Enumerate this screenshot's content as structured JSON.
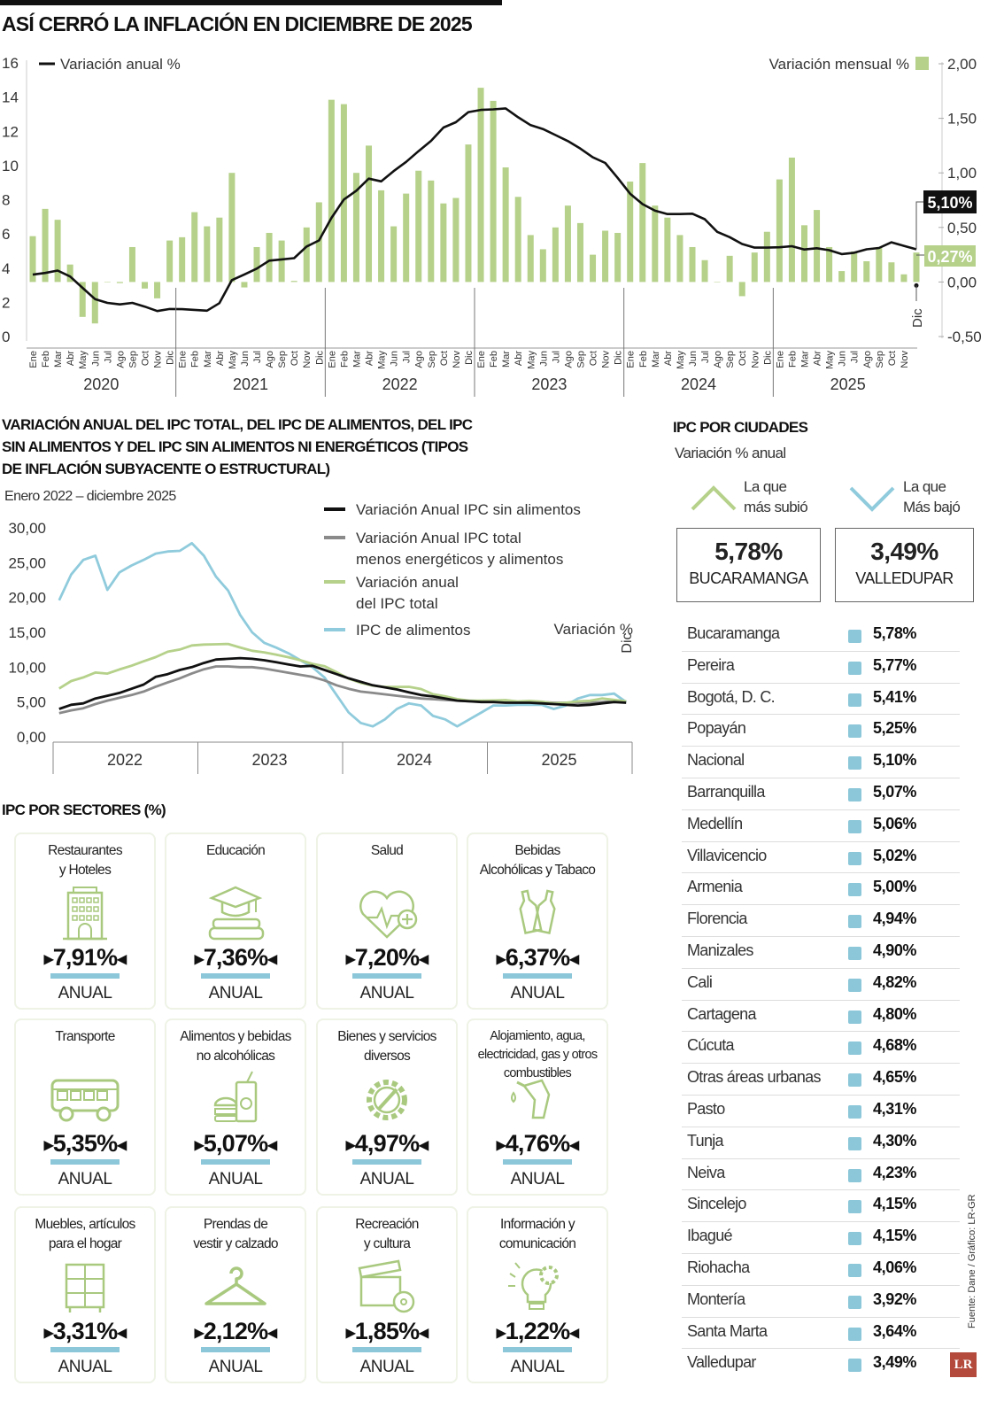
{
  "title": "ASÍ CERRÓ LA INFLACIÓN EN DICIEMBRE DE 2025",
  "chart_data": [
    {
      "type": "bar+line",
      "legend_line": "Variación anual %",
      "legend_bar": "Variación mensual %",
      "left_ticks": [
        "0",
        "2",
        "4",
        "6",
        "8",
        "10",
        "12",
        "14",
        "16"
      ],
      "left_ylim": [
        0,
        16
      ],
      "right_ticks": [
        "-0,50",
        "0,00",
        "0,50",
        "1,00",
        "1,50",
        "2,00"
      ],
      "right_ylim": [
        -0.5,
        2.0
      ],
      "months": [
        "Ene",
        "Feb",
        "Mar",
        "Abr",
        "May",
        "Jun",
        "Jul",
        "Ago",
        "Sep",
        "Oct",
        "Nov",
        "Dic"
      ],
      "years": [
        "2020",
        "2021",
        "2022",
        "2023",
        "2024",
        "2025"
      ],
      "last_month_label": "Dic",
      "series": [
        {
          "name": "Variación mensual %",
          "kind": "bar",
          "color": "#b5d18a",
          "values": [
            0.42,
            0.67,
            0.57,
            0.16,
            -0.32,
            -0.38,
            0.0,
            -0.01,
            0.32,
            -0.06,
            -0.15,
            0.38,
            0.41,
            0.64,
            0.51,
            0.59,
            1.0,
            -0.05,
            0.32,
            0.45,
            0.38,
            0.01,
            0.5,
            0.73,
            1.67,
            1.63,
            1.0,
            1.25,
            0.84,
            0.51,
            0.81,
            1.02,
            0.93,
            0.72,
            0.77,
            1.26,
            1.78,
            1.66,
            1.05,
            0.78,
            0.43,
            0.3,
            0.5,
            0.7,
            0.54,
            0.25,
            0.47,
            0.45,
            0.92,
            1.09,
            0.7,
            0.59,
            0.43,
            0.32,
            0.2,
            0.0,
            0.24,
            -0.13,
            0.27,
            0.46,
            0.94,
            1.14,
            0.52,
            0.66,
            0.32,
            0.1,
            0.28,
            0.19,
            0.32,
            0.18,
            0.07,
            0.27
          ]
        },
        {
          "name": "Variación anual %",
          "kind": "line",
          "color": "#111111",
          "values": [
            3.62,
            3.72,
            3.86,
            3.51,
            2.85,
            2.19,
            1.97,
            1.88,
            1.97,
            1.75,
            1.49,
            1.61,
            1.6,
            1.56,
            1.51,
            1.95,
            3.3,
            3.63,
            3.97,
            4.44,
            4.51,
            4.58,
            5.26,
            5.62,
            6.94,
            8.01,
            8.53,
            9.23,
            9.07,
            9.67,
            10.21,
            10.84,
            11.44,
            12.22,
            12.53,
            13.12,
            13.25,
            13.28,
            13.34,
            12.82,
            12.36,
            12.13,
            11.78,
            11.43,
            10.99,
            10.48,
            10.15,
            9.28,
            8.35,
            7.74,
            7.36,
            7.16,
            7.16,
            7.18,
            6.86,
            6.12,
            5.81,
            5.41,
            5.2,
            5.2,
            5.22,
            5.28,
            5.09,
            5.16,
            5.05,
            4.82,
            4.9,
            5.1,
            5.18,
            5.51,
            5.3,
            5.1
          ]
        }
      ],
      "callout_annual": "5,10%",
      "callout_monthly": "0,27%"
    },
    {
      "type": "line",
      "title": "VARIACIÓN ANUAL DEL IPC TOTAL, DEL IPC DE ALIMENTOS, DEL IPC SIN ALIMENTOS Y DEL IPC SIN ALIMENTOS NI ENERGÉTICOS (TIPOS DE INFLACIÓN SUBYACENTE O ESTRUCTURAL)",
      "subtitle": "Enero 2022 – diciembre 2025",
      "ylabel": "Variación %",
      "last_month_label": "Dic",
      "y_ticks": [
        "0,00",
        "5,00",
        "10,00",
        "15,00",
        "20,00",
        "25,00",
        "30,00"
      ],
      "ylim": [
        0,
        30
      ],
      "years": [
        "2022",
        "2023",
        "2024",
        "2025"
      ],
      "series": [
        {
          "name": "Variación Anual IPC sin alimentos",
          "color": "#111111",
          "values": [
            4.0,
            4.6,
            4.8,
            5.5,
            5.9,
            6.3,
            6.9,
            7.5,
            8.6,
            9.0,
            9.6,
            10.0,
            10.6,
            11.1,
            11.2,
            11.3,
            11.2,
            11.0,
            10.7,
            10.4,
            10.1,
            10.2,
            9.6,
            9.0,
            8.4,
            7.9,
            7.4,
            7.1,
            6.8,
            6.4,
            6.0,
            5.8,
            5.5,
            5.2,
            5.1,
            5.0,
            5.0,
            4.9,
            4.9,
            4.9,
            4.8,
            4.7,
            4.6,
            4.5,
            4.6,
            4.8,
            5.0,
            4.9
          ]
        },
        {
          "name": "Variación Anual IPC total menos energéticos y alimentos",
          "color": "#8a8a8a",
          "values": [
            3.4,
            3.8,
            4.1,
            4.7,
            5.2,
            5.6,
            6.0,
            6.5,
            7.2,
            7.8,
            8.4,
            9.1,
            9.7,
            10.1,
            10.1,
            10.0,
            10.0,
            9.8,
            9.5,
            9.2,
            8.9,
            8.6,
            8.1,
            7.4,
            6.9,
            6.5,
            6.3,
            6.1,
            5.9,
            5.7,
            5.5,
            5.4,
            5.3,
            5.2,
            5.1,
            5.1,
            5.1,
            5.0,
            5.0,
            5.0,
            5.0,
            4.9,
            4.9,
            4.9,
            4.9,
            5.0,
            5.1,
            5.1
          ]
        },
        {
          "name": "Variación anual del IPC total",
          "color": "#b5d18a",
          "values": [
            6.94,
            8.01,
            8.53,
            9.23,
            9.07,
            9.67,
            10.21,
            10.84,
            11.44,
            12.22,
            12.53,
            13.12,
            13.25,
            13.28,
            13.34,
            12.82,
            12.36,
            12.13,
            11.78,
            11.43,
            10.99,
            10.48,
            10.15,
            9.28,
            8.35,
            7.74,
            7.36,
            7.16,
            7.16,
            7.18,
            6.86,
            6.12,
            5.81,
            5.41,
            5.2,
            5.2,
            5.22,
            5.28,
            5.09,
            5.16,
            5.05,
            4.82,
            4.9,
            5.1,
            5.18,
            5.51,
            5.3,
            5.1
          ]
        },
        {
          "name": "IPC de alimentos",
          "color": "#8fcbdc",
          "values": [
            19.6,
            23.3,
            25.4,
            26.0,
            21.1,
            23.6,
            24.6,
            25.4,
            26.3,
            26.6,
            26.7,
            27.8,
            26.0,
            23.0,
            21.0,
            17.5,
            15.0,
            13.5,
            12.8,
            12.0,
            11.0,
            10.0,
            8.5,
            6.0,
            3.5,
            2.0,
            1.5,
            2.5,
            4.0,
            4.8,
            4.5,
            3.0,
            2.5,
            1.5,
            2.5,
            3.5,
            4.5,
            4.5,
            4.6,
            4.6,
            4.6,
            4.0,
            4.5,
            5.5,
            6.0,
            6.0,
            6.2,
            5.0
          ]
        }
      ]
    }
  ],
  "legend2": {
    "l1": "Variación Anual IPC sin alimentos",
    "l2a": "Variación Anual IPC total",
    "l2b": "menos energéticos y alimentos",
    "l3a": "Variación anual",
    "l3b": "del IPC total",
    "l4": "IPC de alimentos"
  },
  "title2_lines": [
    "VARIACIÓN ANUAL DEL IPC TOTAL, DEL IPC DE ALIMENTOS, DEL IPC",
    "SIN ALIMENTOS Y DEL IPC SIN ALIMENTOS NI ENERGÉTICOS (TIPOS",
    "DE INFLACIÓN SUBYACENTE O ESTRUCTURAL)"
  ],
  "cities": {
    "title": "IPC POR CIUDADES",
    "subtitle": "Variación % anual",
    "up_label_1": "La que",
    "up_label_2": "más subió",
    "down_label_1": "La que",
    "down_label_2": "Más bajó",
    "max": {
      "value": "5,78%",
      "city": "BUCARAMANGA"
    },
    "min": {
      "value": "3,49%",
      "city": "VALLEDUPAR"
    },
    "rows": [
      {
        "name": "Bucaramanga",
        "value": "5,78%"
      },
      {
        "name": "Pereira",
        "value": "5,77%"
      },
      {
        "name": "Bogotá, D. C.",
        "value": "5,41%"
      },
      {
        "name": "Popayán",
        "value": "5,25%"
      },
      {
        "name": "Nacional",
        "value": "5,10%"
      },
      {
        "name": "Barranquilla",
        "value": "5,07%"
      },
      {
        "name": "Medellín",
        "value": "5,06%"
      },
      {
        "name": "Villavicencio",
        "value": "5,02%"
      },
      {
        "name": "Armenia",
        "value": "5,00%"
      },
      {
        "name": "Florencia",
        "value": "4,94%"
      },
      {
        "name": "Manizales",
        "value": "4,90%"
      },
      {
        "name": "Cali",
        "value": "4,82%"
      },
      {
        "name": "Cartagena",
        "value": "4,80%"
      },
      {
        "name": "Cúcuta",
        "value": "4,68%"
      },
      {
        "name": "Otras áreas urbanas",
        "value": "4,65%"
      },
      {
        "name": "Pasto",
        "value": "4,31%"
      },
      {
        "name": "Tunja",
        "value": "4,30%"
      },
      {
        "name": "Neiva",
        "value": "4,23%"
      },
      {
        "name": "Sincelejo",
        "value": "4,15%"
      },
      {
        "name": "Ibagué",
        "value": "4,15%"
      },
      {
        "name": "Riohacha",
        "value": "4,06%"
      },
      {
        "name": "Montería",
        "value": "3,92%"
      },
      {
        "name": "Santa Marta",
        "value": "3,64%"
      },
      {
        "name": "Valledupar",
        "value": "3,49%"
      }
    ]
  },
  "sectors": {
    "title": "IPC POR SECTORES (%)",
    "unit": "ANUAL",
    "items": [
      {
        "name1": "Restaurantes",
        "name2": "y Hoteles",
        "value": "7,91%",
        "icon": "hotel-icon"
      },
      {
        "name1": "Educación",
        "name2": "",
        "value": "7,36%",
        "icon": "graduation-cap-icon"
      },
      {
        "name1": "Salud",
        "name2": "",
        "value": "7,20%",
        "icon": "heart-pulse-icon"
      },
      {
        "name1": "Bebidas",
        "name2": "Alcohólicas y Tabaco",
        "value": "6,37%",
        "icon": "bottles-icon"
      },
      {
        "name1": "Transporte",
        "name2": "",
        "value": "5,35%",
        "icon": "bus-icon"
      },
      {
        "name1": "Alimentos y bebidas",
        "name2": "no alcohólicas",
        "value": "5,07%",
        "icon": "burger-drink-icon"
      },
      {
        "name1": "Bienes y servicios",
        "name2": "diversos",
        "value": "4,97%",
        "icon": "gear-wrench-icon"
      },
      {
        "name1": "Alojamiento, agua,",
        "name2": "electricidad, gas y otros combustibles",
        "value": "4,76%",
        "icon": "fuel-nozzle-icon"
      },
      {
        "name1": "Muebles, artículos",
        "name2": "para el hogar",
        "value": "3,31%",
        "icon": "furniture-icon"
      },
      {
        "name1": "Prendas de",
        "name2": "vestir y calzado",
        "value": "2,12%",
        "icon": "hanger-icon"
      },
      {
        "name1": "Recreación",
        "name2": "y cultura",
        "value": "1,85%",
        "icon": "clapperboard-icon"
      },
      {
        "name1": "Información y",
        "name2": "comunicación",
        "value": "1,22%",
        "icon": "lightbulb-gear-icon"
      }
    ]
  },
  "source": "Fuente: Dane / Gráfico: LR-GR",
  "logo": "LR",
  "colors": {
    "green": "#b5d18a",
    "blue": "#8fcbdc",
    "black": "#111111",
    "gray": "#8a8a8a"
  }
}
